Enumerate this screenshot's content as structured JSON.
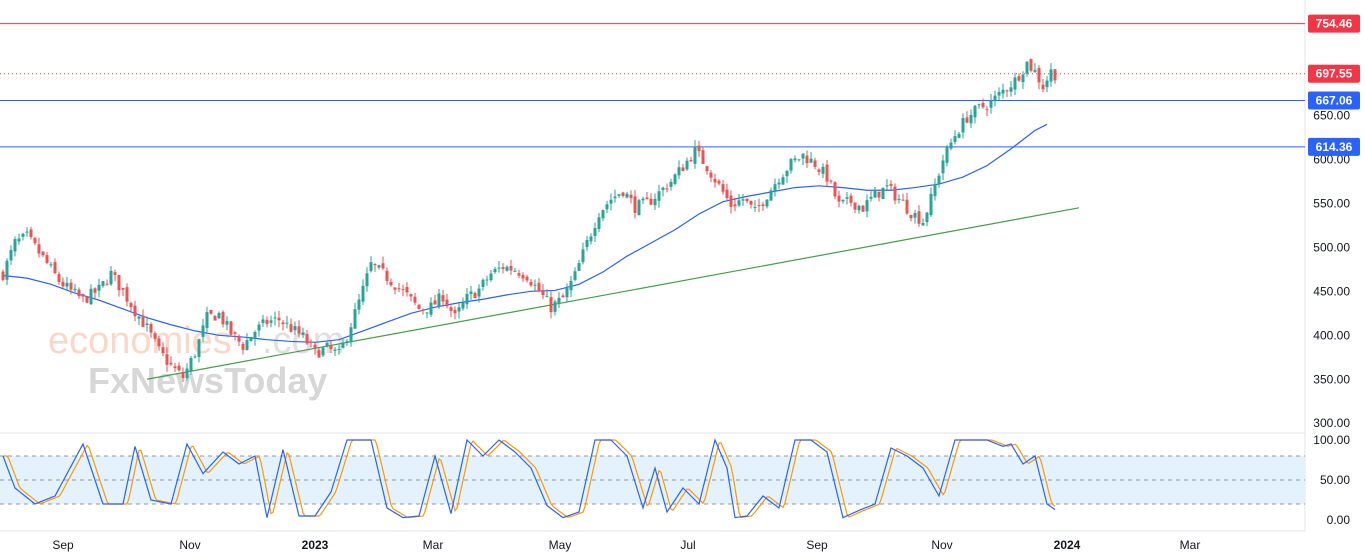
{
  "watermark": {
    "brand_a": "economies",
    "brand_b": ".com",
    "brand_c": "FxNewsToday"
  },
  "colors": {
    "up": "#26a69a",
    "down": "#ef5350",
    "ma": "#2962ff",
    "trend": "#43a047",
    "resistance": "#f23645",
    "support": "#2962ff",
    "stoch_k": "#2962ff",
    "stoch_d": "#ff9800",
    "band": "#e3f2fd"
  },
  "chart_data": [
    {
      "type": "candlestick",
      "x_labels": [
        "Sep",
        "Nov",
        "2023",
        "Mar",
        "May",
        "Jul",
        "Sep",
        "Nov",
        "2024",
        "Mar"
      ],
      "y_ticks": [
        "300.00",
        "350.00",
        "400.00",
        "450.00",
        "500.00",
        "550.00",
        "600.00",
        "650.00"
      ],
      "ylim": [
        290,
        770
      ],
      "grid": false,
      "levels": [
        {
          "label": "754.46",
          "value": 754.46,
          "style": "solid",
          "color": "#f23645"
        },
        {
          "label": "697.55",
          "value": 697.55,
          "style": "dotted",
          "color": "#f23645"
        },
        {
          "label": "667.06",
          "value": 667.06,
          "style": "solid",
          "color": "#2962ff"
        },
        {
          "label": "614.36",
          "value": 614.36,
          "style": "solid",
          "color": "#2962ff"
        }
      ],
      "price_path": [
        [
          0,
          470
        ],
        [
          3,
          505
        ],
        [
          6,
          512
        ],
        [
          10,
          488
        ],
        [
          14,
          462
        ],
        [
          17,
          450
        ],
        [
          20,
          440
        ],
        [
          24,
          452
        ],
        [
          27,
          470
        ],
        [
          30,
          450
        ],
        [
          33,
          428
        ],
        [
          36,
          408
        ],
        [
          39,
          382
        ],
        [
          42,
          365
        ],
        [
          45,
          352
        ],
        [
          48,
          380
        ],
        [
          51,
          420
        ],
        [
          54,
          424
        ],
        [
          57,
          402
        ],
        [
          60,
          388
        ],
        [
          63,
          405
        ],
        [
          66,
          415
        ],
        [
          69,
          418
        ],
        [
          72,
          408
        ],
        [
          75,
          398
        ],
        [
          78,
          380
        ],
        [
          81,
          385
        ],
        [
          84,
          378
        ],
        [
          86,
          400
        ],
        [
          89,
          438
        ],
        [
          92,
          480
        ],
        [
          95,
          470
        ],
        [
          98,
          458
        ],
        [
          101,
          445
        ],
        [
          104,
          430
        ],
        [
          107,
          432
        ],
        [
          110,
          445
        ],
        [
          113,
          420
        ],
        [
          116,
          442
        ],
        [
          119,
          452
        ],
        [
          122,
          470
        ],
        [
          125,
          478
        ],
        [
          128,
          475
        ],
        [
          131,
          468
        ],
        [
          134,
          450
        ],
        [
          137,
          432
        ],
        [
          140,
          442
        ],
        [
          143,
          468
        ],
        [
          146,
          505
        ],
        [
          149,
          540
        ],
        [
          152,
          555
        ],
        [
          155,
          565
        ],
        [
          158,
          546
        ],
        [
          161,
          550
        ],
        [
          164,
          562
        ],
        [
          167,
          575
        ],
        [
          170,
          592
        ],
        [
          173,
          610
        ],
        [
          176,
          592
        ],
        [
          179,
          570
        ],
        [
          182,
          548
        ],
        [
          185,
          555
        ],
        [
          188,
          540
        ],
        [
          191,
          560
        ],
        [
          194,
          580
        ],
        [
          197,
          595
        ],
        [
          200,
          605
        ],
        [
          203,
          595
        ],
        [
          206,
          580
        ],
        [
          209,
          548
        ],
        [
          212,
          552
        ],
        [
          215,
          545
        ],
        [
          218,
          560
        ],
        [
          221,
          568
        ],
        [
          224,
          555
        ],
        [
          227,
          540
        ],
        [
          230,
          530
        ],
        [
          232,
          555
        ],
        [
          235,
          600
        ],
        [
          238,
          628
        ],
        [
          241,
          648
        ],
        [
          244,
          658
        ],
        [
          247,
          665
        ],
        [
          250,
          678
        ],
        [
          253,
          690
        ],
        [
          256,
          710
        ],
        [
          258,
          700
        ],
        [
          260,
          683
        ],
        [
          262,
          700
        ],
        [
          263,
          697
        ]
      ],
      "moving_average": [
        [
          0,
          468
        ],
        [
          6,
          465
        ],
        [
          12,
          458
        ],
        [
          18,
          448
        ],
        [
          24,
          440
        ],
        [
          30,
          430
        ],
        [
          36,
          420
        ],
        [
          42,
          412
        ],
        [
          48,
          405
        ],
        [
          54,
          400
        ],
        [
          60,
          398
        ],
        [
          66,
          395
        ],
        [
          72,
          393
        ],
        [
          78,
          392
        ],
        [
          84,
          395
        ],
        [
          90,
          405
        ],
        [
          96,
          415
        ],
        [
          102,
          425
        ],
        [
          108,
          432
        ],
        [
          114,
          437
        ],
        [
          120,
          441
        ],
        [
          126,
          446
        ],
        [
          132,
          450
        ],
        [
          138,
          451
        ],
        [
          144,
          458
        ],
        [
          150,
          472
        ],
        [
          156,
          490
        ],
        [
          162,
          505
        ],
        [
          168,
          520
        ],
        [
          174,
          538
        ],
        [
          180,
          552
        ],
        [
          186,
          558
        ],
        [
          192,
          563
        ],
        [
          198,
          568
        ],
        [
          204,
          570
        ],
        [
          210,
          568
        ],
        [
          216,
          565
        ],
        [
          222,
          565
        ],
        [
          228,
          568
        ],
        [
          234,
          572
        ],
        [
          240,
          580
        ],
        [
          246,
          593
        ],
        [
          252,
          612
        ],
        [
          258,
          633
        ],
        [
          261,
          640
        ]
      ],
      "trendline": [
        [
          36,
          350
        ],
        [
          269,
          545
        ]
      ]
    },
    {
      "type": "line",
      "name": "stochastic",
      "y_ticks": [
        "0.00",
        "50.00",
        "100.00"
      ],
      "ylim": [
        -10,
        105
      ],
      "bands": [
        20,
        50,
        80
      ],
      "k_path": [
        [
          0,
          80
        ],
        [
          3,
          40
        ],
        [
          8,
          20
        ],
        [
          13,
          30
        ],
        [
          20,
          95
        ],
        [
          25,
          20
        ],
        [
          30,
          20
        ],
        [
          33,
          92
        ],
        [
          37,
          25
        ],
        [
          42,
          20
        ],
        [
          46,
          95
        ],
        [
          50,
          58
        ],
        [
          55,
          85
        ],
        [
          59,
          70
        ],
        [
          63,
          80
        ],
        [
          66,
          3
        ],
        [
          70,
          88
        ],
        [
          74,
          5
        ],
        [
          78,
          5
        ],
        [
          82,
          35
        ],
        [
          86,
          100
        ],
        [
          92,
          100
        ],
        [
          96,
          15
        ],
        [
          100,
          3
        ],
        [
          104,
          5
        ],
        [
          108,
          80
        ],
        [
          112,
          8
        ],
        [
          116,
          100
        ],
        [
          120,
          80
        ],
        [
          124,
          100
        ],
        [
          128,
          85
        ],
        [
          132,
          65
        ],
        [
          136,
          18
        ],
        [
          140,
          3
        ],
        [
          144,
          10
        ],
        [
          148,
          100
        ],
        [
          152,
          100
        ],
        [
          156,
          80
        ],
        [
          160,
          15
        ],
        [
          163,
          65
        ],
        [
          166,
          10
        ],
        [
          170,
          40
        ],
        [
          174,
          20
        ],
        [
          178,
          100
        ],
        [
          181,
          65
        ],
        [
          183,
          3
        ],
        [
          186,
          5
        ],
        [
          190,
          30
        ],
        [
          194,
          15
        ],
        [
          198,
          100
        ],
        [
          202,
          100
        ],
        [
          206,
          85
        ],
        [
          210,
          3
        ],
        [
          214,
          12
        ],
        [
          218,
          20
        ],
        [
          222,
          90
        ],
        [
          226,
          80
        ],
        [
          230,
          65
        ],
        [
          234,
          30
        ],
        [
          238,
          100
        ],
        [
          242,
          100
        ],
        [
          246,
          100
        ],
        [
          250,
          92
        ],
        [
          252,
          95
        ],
        [
          255,
          70
        ],
        [
          258,
          80
        ],
        [
          261,
          20
        ],
        [
          263,
          13
        ]
      ]
    }
  ]
}
